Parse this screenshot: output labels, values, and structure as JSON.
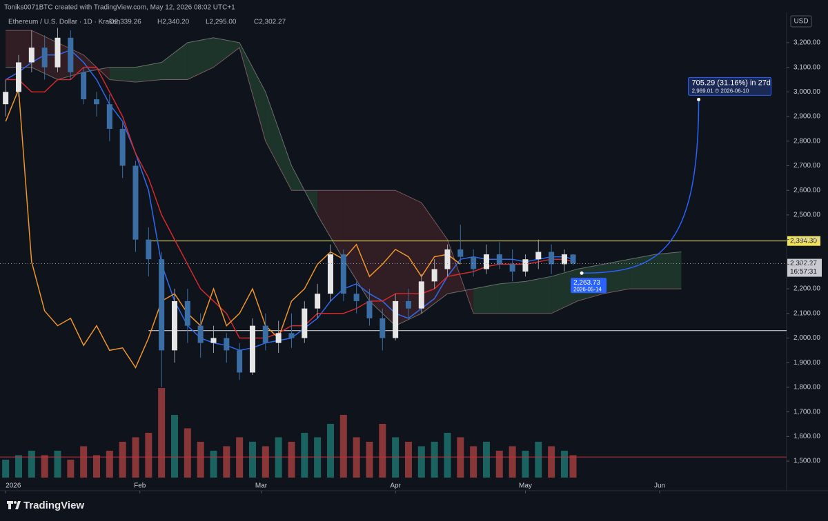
{
  "chart_data": {
    "type": "candlestick",
    "header": "Toniks0071BTC created with TradingView.com, May 12, 2026 08:02 UTC+1",
    "symbol": "Ethereum / U.S. Dollar · 1D · Kraken",
    "ohlc": [
      "O2,339.26",
      "H2,340.20",
      "L2,295.00",
      "C2,302.27"
    ],
    "currency": "USD",
    "brand": "TradingView",
    "xlim": [
      -1.3,
      180.3
    ],
    "xticks": [
      {
        "value": 0,
        "label": "2026"
      },
      {
        "value": 31,
        "label": "Feb"
      },
      {
        "value": 59,
        "label": "Mar"
      },
      {
        "value": 90,
        "label": "Apr"
      },
      {
        "value": 120,
        "label": "May"
      },
      {
        "value": 151,
        "label": "Jun"
      }
    ],
    "ylim": [
      1433,
      3323
    ],
    "yticks": [
      {
        "value": 1500,
        "label": "1,500.00"
      },
      {
        "value": 1600,
        "label": "1,600.00"
      },
      {
        "value": 1700,
        "label": "1,700.00"
      },
      {
        "value": 1800,
        "label": "1,800.00"
      },
      {
        "value": 1900,
        "label": "1,900.00"
      },
      {
        "value": 2000,
        "label": "2,000.00"
      },
      {
        "value": 2100,
        "label": "2,100.00"
      },
      {
        "value": 2200,
        "label": "2,200.00"
      },
      {
        "value": 2300,
        "label": "2,300.00"
      },
      {
        "value": 2400,
        "label": "2,400.00"
      },
      {
        "value": 2500,
        "label": "2,500.00"
      },
      {
        "value": 2600,
        "label": "2,600.00"
      },
      {
        "value": 2700,
        "label": "2,700.00"
      },
      {
        "value": 2800,
        "label": "2,800.00"
      },
      {
        "value": 2900,
        "label": "2,900.00"
      },
      {
        "value": 3000,
        "label": "3,000.00"
      },
      {
        "value": 3100,
        "label": "3,100.00"
      },
      {
        "value": 3200,
        "label": "3,200.00"
      }
    ],
    "up_color": "#26a69a",
    "down_color": "#ef5350",
    "candles": {
      "x": [
        0,
        3,
        6,
        9,
        12,
        15,
        18,
        21,
        24,
        27,
        30,
        33,
        36,
        39,
        42,
        45,
        48,
        51,
        54,
        57,
        60,
        63,
        66,
        69,
        72,
        75,
        78,
        81,
        84,
        87,
        90,
        93,
        96,
        99,
        102,
        105,
        108,
        111,
        114,
        117,
        120,
        123,
        126,
        129,
        131
      ],
      "open": [
        2950,
        3000,
        3120,
        3180,
        3100,
        3220,
        3080,
        2970,
        2950,
        2850,
        2700,
        2400,
        2320,
        1950,
        2150,
        2050,
        1980,
        2000,
        1950,
        1860,
        2050,
        1980,
        2020,
        2000,
        2120,
        2180,
        2340,
        2180,
        2150,
        2080,
        2000,
        2150,
        2120,
        2230,
        2280,
        2360,
        2330,
        2280,
        2340,
        2300,
        2270,
        2320,
        2350,
        2300,
        2339.26
      ],
      "high": [
        3050,
        3150,
        3250,
        3230,
        3260,
        3250,
        3100,
        3000,
        2990,
        2880,
        2720,
        2450,
        2350,
        2200,
        2200,
        2100,
        2050,
        2020,
        1980,
        2080,
        2100,
        2070,
        2100,
        2150,
        2220,
        2380,
        2360,
        2230,
        2200,
        2120,
        2180,
        2200,
        2260,
        2320,
        2380,
        2460,
        2360,
        2380,
        2390,
        2360,
        2340,
        2400,
        2380,
        2360,
        2340.2
      ],
      "low": [
        2900,
        2980,
        3080,
        3050,
        3080,
        3050,
        2950,
        2900,
        2800,
        2650,
        2350,
        2250,
        1800,
        1900,
        1980,
        1920,
        1940,
        1900,
        1830,
        1850,
        1950,
        1940,
        1960,
        1980,
        2080,
        2150,
        2150,
        2100,
        2050,
        1950,
        1990,
        2080,
        2100,
        2200,
        2250,
        2300,
        2250,
        2260,
        2280,
        2230,
        2250,
        2280,
        2260,
        2270,
        2295
      ],
      "close": [
        3000,
        3120,
        3180,
        3100,
        3220,
        3080,
        2970,
        2950,
        2850,
        2700,
        2400,
        2320,
        1950,
        2150,
        2050,
        1980,
        2000,
        1950,
        1860,
        2050,
        1980,
        2020,
        2000,
        2120,
        2180,
        2340,
        2180,
        2150,
        2080,
        2000,
        2150,
        2120,
        2230,
        2280,
        2360,
        2330,
        2280,
        2340,
        2300,
        2270,
        2320,
        2350,
        2300,
        2340,
        2302.27
      ]
    },
    "volume": {
      "ylim": [
        0,
        100
      ],
      "values": [
        20,
        25,
        30,
        25,
        30,
        20,
        35,
        25,
        30,
        40,
        45,
        50,
        100,
        70,
        55,
        40,
        30,
        35,
        45,
        40,
        35,
        45,
        40,
        50,
        45,
        60,
        70,
        45,
        40,
        60,
        45,
        40,
        35,
        40,
        50,
        45,
        35,
        40,
        30,
        35,
        30,
        40,
        35,
        30,
        25
      ],
      "ma": 23,
      "ma_color": "#c2323a"
    },
    "series": [
      {
        "color": "#2f6bf0",
        "values": [
          3050,
          3080,
          3120,
          3150,
          3150,
          3170,
          3120,
          3050,
          2950,
          2880,
          2750,
          2600,
          2300,
          2150,
          2050,
          2000,
          1980,
          1970,
          1950,
          1960,
          1980,
          1990,
          2000,
          2040,
          2080,
          2150,
          2200,
          2220,
          2180,
          2150,
          2100,
          2080,
          2120,
          2160,
          2250,
          2320,
          2330,
          2320,
          2320,
          2320,
          2310,
          2320,
          2330,
          2330,
          2320
        ]
      },
      {
        "color": "#d62a2a",
        "values": [
          3050,
          3050,
          3000,
          3000,
          3050,
          3050,
          3100,
          3100,
          3000,
          2900,
          2750,
          2650,
          2500,
          2400,
          2300,
          2200,
          2150,
          2100,
          2000,
          2000,
          2000,
          2020,
          2050,
          2050,
          2100,
          2100,
          2100,
          2120,
          2150,
          2150,
          2180,
          2180,
          2180,
          2200,
          2250,
          2260,
          2270,
          2290,
          2300,
          2300,
          2300,
          2310,
          2320,
          2320,
          2310
        ]
      },
      {
        "color": "#f0962a",
        "values": [
          2880,
          3010,
          2310,
          2110,
          2050,
          2080,
          1970,
          2050,
          1950,
          1960,
          1880,
          2000,
          2150,
          2180,
          2100,
          2050,
          2200,
          2050,
          2100,
          2200,
          2050,
          2000,
          2150,
          2200,
          2300,
          2350,
          2320,
          2380,
          2250,
          2300,
          2360,
          2330,
          2250,
          2330,
          2340,
          2300,
          null,
          null,
          null,
          null,
          null,
          null,
          null,
          null,
          null
        ]
      }
    ],
    "cloud": {
      "x": [
        0,
        6,
        12,
        18,
        24,
        30,
        36,
        42,
        48,
        54,
        60,
        66,
        72,
        78,
        84,
        90,
        96,
        102,
        108,
        114,
        120,
        126,
        132,
        138,
        144,
        150,
        156
      ],
      "span_a": [
        3100,
        3100,
        3050,
        3080,
        3100,
        3100,
        3120,
        3200,
        3220,
        3200,
        3000,
        2700,
        2500,
        2320,
        2150,
        2050,
        2100,
        2180,
        2200,
        2220,
        2230,
        2250,
        2280,
        2300,
        2320,
        2340,
        2350
      ],
      "span_b": [
        3250,
        3250,
        3200,
        3150,
        3050,
        3040,
        3050,
        3050,
        3100,
        3180,
        2800,
        2600,
        2600,
        2600,
        2600,
        2600,
        2550,
        2400,
        2100,
        2100,
        2100,
        2100,
        2150,
        2180,
        2200,
        2200,
        2200
      ],
      "up_color": "#2e5e3c",
      "down_color": "#5a2a2e"
    },
    "horizontal_lines": [
      {
        "value": 2394.3,
        "label": "2,394.30",
        "color": "#f2e35b"
      },
      {
        "value": 2030,
        "color": "#e6e6e6"
      }
    ],
    "last_price": {
      "value": 2302.27,
      "label": "2,302.27",
      "countdown": "16:57:31"
    },
    "projection": {
      "start": {
        "x": 133,
        "y": 2263.73,
        "label": "2,263.73",
        "date": "2026-05-14"
      },
      "end": {
        "x": 160,
        "y": 2969.01,
        "label": "705.29 (31.16%) in 27d",
        "detail": "2,969.01 ⏱ 2026-06-10"
      },
      "color": "#2962ff"
    }
  }
}
